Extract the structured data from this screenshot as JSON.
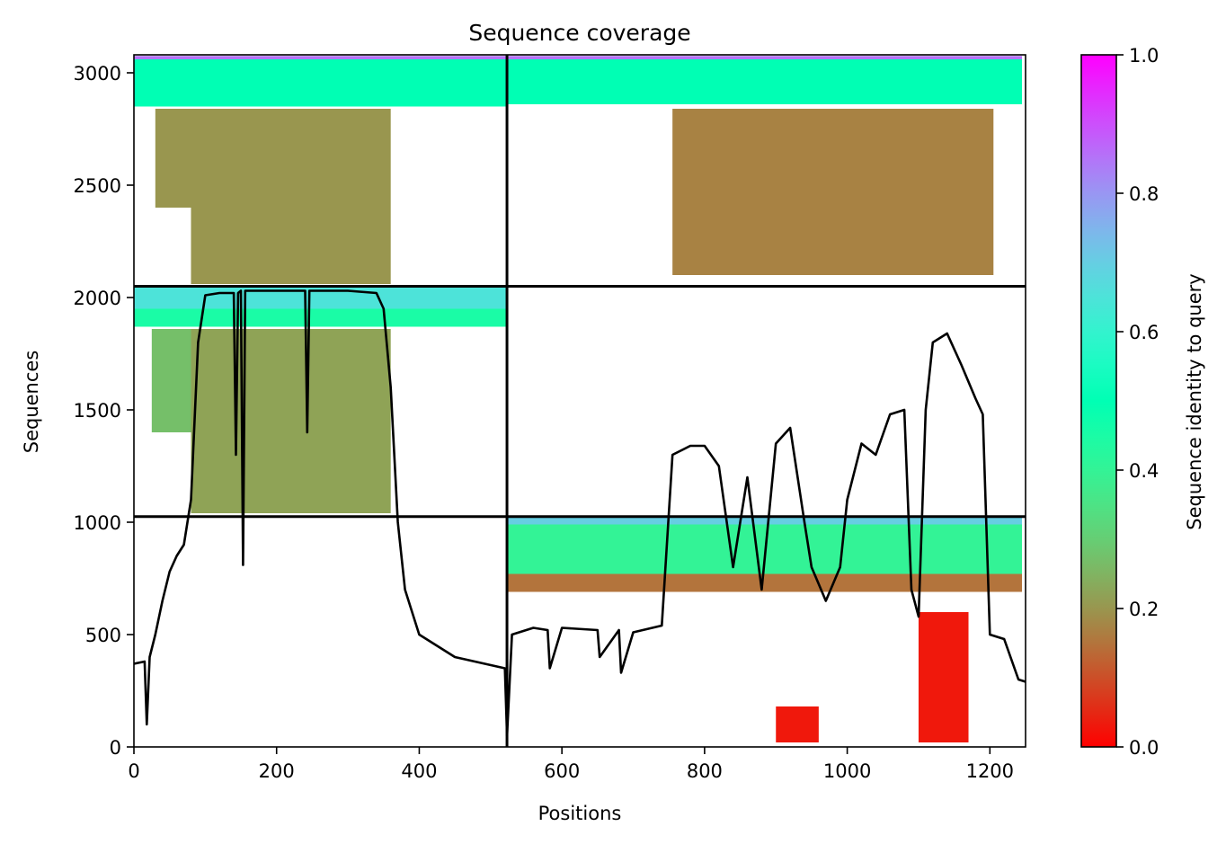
{
  "chart_data": {
    "type": "heatmap",
    "title": "Sequence coverage",
    "xlabel": "Positions",
    "ylabel": "Sequences",
    "colorbar_label": "Sequence identity to query",
    "xlim": [
      0,
      1250
    ],
    "ylim": [
      0,
      3080
    ],
    "x_ticks": [
      0,
      200,
      400,
      600,
      800,
      1000,
      1200
    ],
    "y_ticks": [
      0,
      500,
      1000,
      1500,
      2000,
      2500,
      3000
    ],
    "colorbar_ticks": [
      "0.0",
      "0.2",
      "0.4",
      "0.6",
      "0.8",
      "1.0"
    ],
    "colormap": "rainbow_r",
    "boundaries": {
      "x": 523,
      "y": [
        1025,
        2050
      ]
    },
    "coverage_blocks": [
      {
        "x": [
          0,
          523
        ],
        "y": [
          2850,
          3060
        ],
        "identity": 0.5
      },
      {
        "x": [
          0,
          523
        ],
        "y": [
          3060,
          3075
        ],
        "identity": 0.85
      },
      {
        "x": [
          80,
          360
        ],
        "y": [
          2060,
          2840
        ],
        "identity": 0.2
      },
      {
        "x": [
          30,
          80
        ],
        "y": [
          2400,
          2840
        ],
        "identity": 0.2
      },
      {
        "x": [
          523,
          1245
        ],
        "y": [
          2860,
          3060
        ],
        "identity": 0.5
      },
      {
        "x": [
          523,
          1245
        ],
        "y": [
          3060,
          3075
        ],
        "identity": 0.85
      },
      {
        "x": [
          755,
          1205
        ],
        "y": [
          2100,
          2840
        ],
        "identity": 0.17
      },
      {
        "x": [
          0,
          523
        ],
        "y": [
          1950,
          2045
        ],
        "identity": 0.65
      },
      {
        "x": [
          0,
          523
        ],
        "y": [
          1870,
          1950
        ],
        "identity": 0.45
      },
      {
        "x": [
          80,
          360
        ],
        "y": [
          1040,
          1860
        ],
        "identity": 0.22
      },
      {
        "x": [
          25,
          80
        ],
        "y": [
          1400,
          1860
        ],
        "identity": 0.27
      },
      {
        "x": [
          523,
          1245
        ],
        "y": [
          990,
          1025
        ],
        "identity": 0.7
      },
      {
        "x": [
          523,
          1245
        ],
        "y": [
          770,
          990
        ],
        "identity": 0.4
      },
      {
        "x": [
          523,
          1245
        ],
        "y": [
          690,
          770
        ],
        "identity": 0.15
      },
      {
        "x": [
          1100,
          1170
        ],
        "y": [
          20,
          600
        ],
        "identity": 0.03
      },
      {
        "x": [
          900,
          960
        ],
        "y": [
          20,
          180
        ],
        "identity": 0.03
      }
    ],
    "coverage_line": {
      "x": [
        0,
        15,
        18,
        22,
        30,
        40,
        50,
        60,
        70,
        80,
        90,
        100,
        120,
        140,
        143,
        146,
        150,
        153,
        156,
        160,
        180,
        200,
        220,
        240,
        243,
        246,
        260,
        300,
        340,
        350,
        360,
        370,
        380,
        400,
        450,
        520,
        523,
        530,
        560,
        580,
        583,
        600,
        650,
        653,
        680,
        683,
        700,
        740,
        755,
        780,
        800,
        820,
        840,
        860,
        880,
        900,
        920,
        940,
        950,
        970,
        990,
        1000,
        1020,
        1040,
        1060,
        1080,
        1090,
        1100,
        1110,
        1120,
        1140,
        1160,
        1180,
        1190,
        1200,
        1220,
        1240,
        1250
      ],
      "y": [
        370,
        380,
        100,
        400,
        500,
        650,
        780,
        850,
        900,
        1100,
        1800,
        2010,
        2020,
        2020,
        1300,
        2020,
        2030,
        810,
        2030,
        2030,
        2030,
        2030,
        2030,
        2030,
        1400,
        2030,
        2030,
        2030,
        2020,
        1950,
        1600,
        1000,
        700,
        500,
        400,
        350,
        50,
        500,
        530,
        520,
        350,
        530,
        520,
        400,
        520,
        330,
        510,
        540,
        1300,
        1340,
        1340,
        1250,
        800,
        1200,
        700,
        1350,
        1420,
        1000,
        800,
        650,
        800,
        1100,
        1350,
        1300,
        1480,
        1500,
        700,
        580,
        1500,
        1800,
        1840,
        1700,
        1550,
        1480,
        500,
        480,
        300,
        290
      ]
    }
  }
}
